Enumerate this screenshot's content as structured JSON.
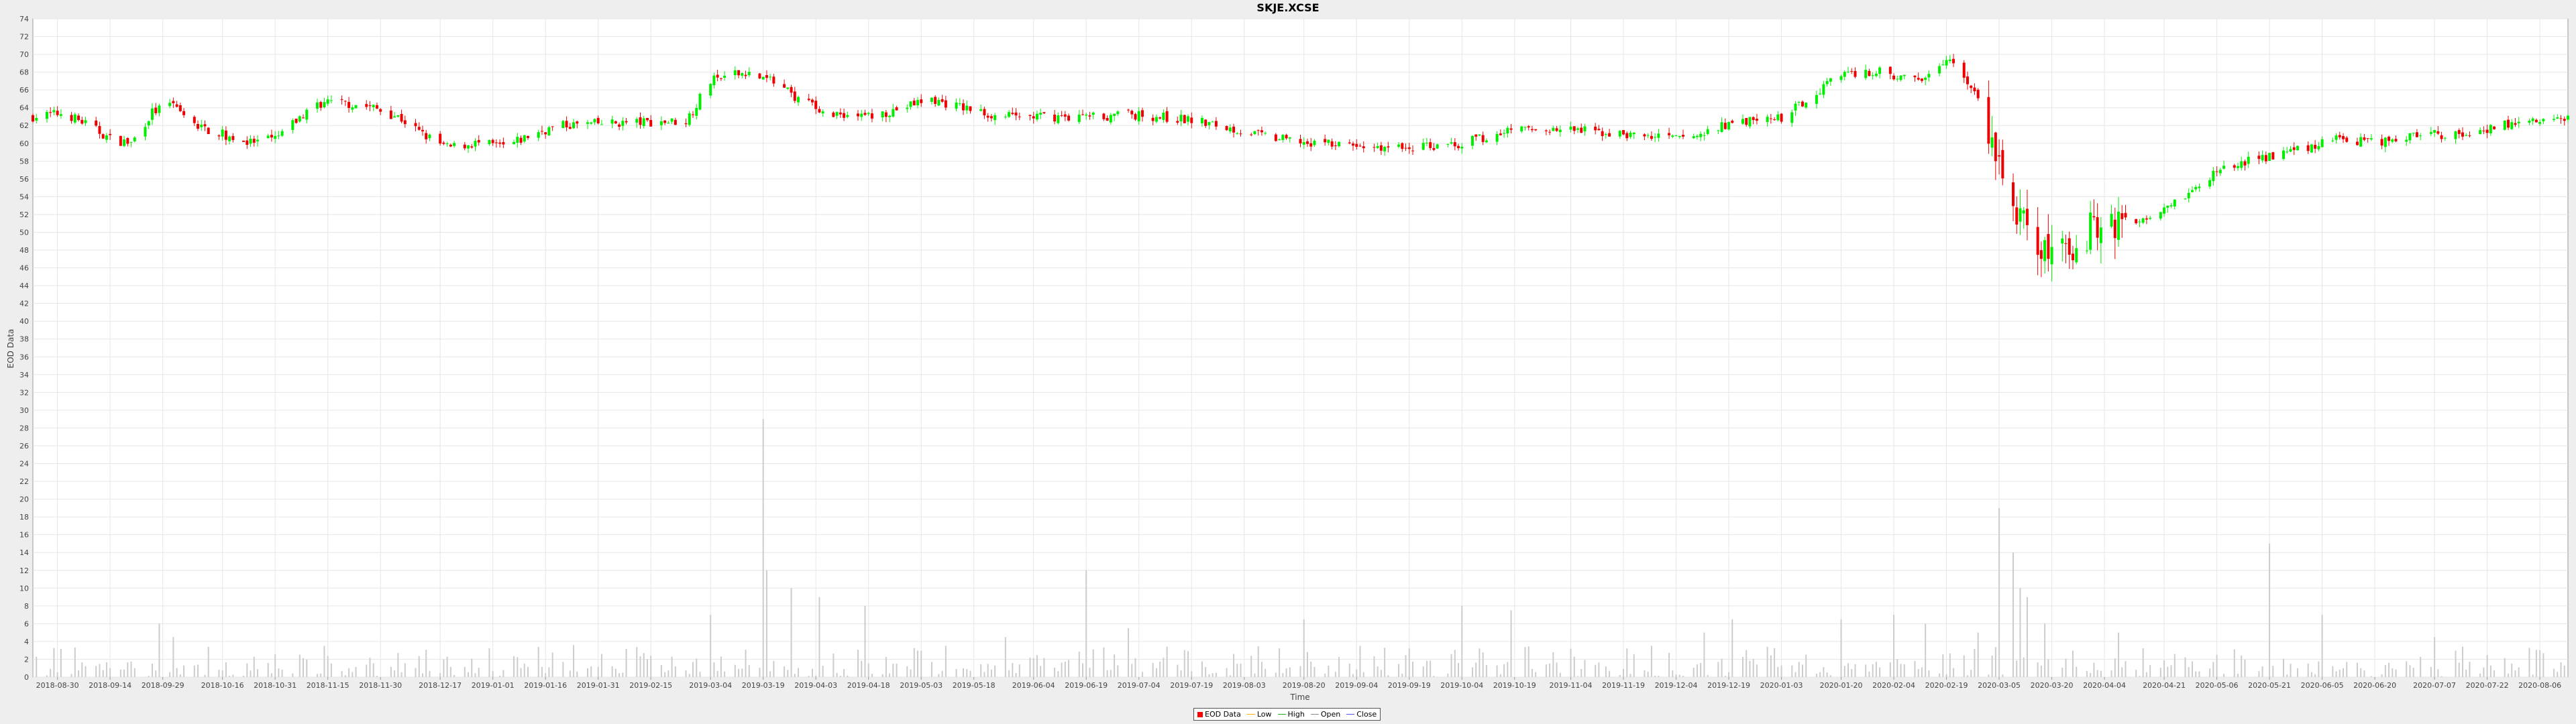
{
  "title": "SKJE.XCSE",
  "chart_data": {
    "type": "candlestick",
    "title": "SKJE.XCSE",
    "xlabel": "Time",
    "ylabel": "EOD Data",
    "ylim": [
      0,
      74
    ],
    "y_ticks": [
      0,
      2,
      4,
      6,
      8,
      10,
      12,
      14,
      16,
      18,
      20,
      22,
      24,
      26,
      28,
      30,
      32,
      34,
      36,
      38,
      40,
      42,
      44,
      46,
      48,
      50,
      52,
      54,
      56,
      58,
      60,
      62,
      64,
      66,
      68,
      70,
      72,
      74
    ],
    "x_range": [
      "2018-08-23",
      "2020-08-14"
    ],
    "x_ticks": [
      "2018-08-30",
      "2018-09-14",
      "2018-09-29",
      "2018-10-16",
      "2018-10-31",
      "2018-11-15",
      "2018-11-30",
      "2018-12-17",
      "2019-01-01",
      "2019-01-16",
      "2019-01-31",
      "2019-02-15",
      "2019-03-04",
      "2019-03-19",
      "2019-04-03",
      "2019-04-18",
      "2019-05-03",
      "2019-05-18",
      "2019-06-04",
      "2019-06-19",
      "2019-07-04",
      "2019-07-19",
      "2019-08-03",
      "2019-08-20",
      "2019-09-04",
      "2019-09-19",
      "2019-10-04",
      "2019-10-19",
      "2019-11-04",
      "2019-11-19",
      "2019-12-04",
      "2019-12-19",
      "2020-01-03",
      "2020-01-20",
      "2020-02-04",
      "2020-02-19",
      "2020-03-05",
      "2020-03-20",
      "2020-04-04",
      "2020-04-21",
      "2020-05-06",
      "2020-05-21",
      "2020-06-05",
      "2020-06-20",
      "2020-07-07",
      "2020-07-22",
      "2020-08-06"
    ],
    "grid": true,
    "legend": {
      "placement": "bottom-center",
      "entries": [
        {
          "name": "EOD Data",
          "color": "#ff0000"
        },
        {
          "name": "Low",
          "color": "#ffaa00"
        },
        {
          "name": "High",
          "color": "#22aa22"
        },
        {
          "name": "Open",
          "color": "#888888"
        },
        {
          "name": "Close",
          "color": "#5555ff"
        }
      ]
    },
    "colors": {
      "up": "#00ee00",
      "down": "#ee0000",
      "volume": "#cccccc"
    },
    "volume_scale": 1.0,
    "close_path": [
      [
        "2018-08-23",
        63.0
      ],
      [
        "2018-09-01",
        63.4
      ],
      [
        "2018-09-08",
        62.0
      ],
      [
        "2018-09-14",
        60.5
      ],
      [
        "2018-09-20",
        60.0
      ],
      [
        "2018-09-26",
        63.5
      ],
      [
        "2018-10-01",
        64.3
      ],
      [
        "2018-10-08",
        62.0
      ],
      [
        "2018-10-16",
        61.0
      ],
      [
        "2018-10-24",
        60.0
      ],
      [
        "2018-10-31",
        60.5
      ],
      [
        "2018-11-06",
        62.5
      ],
      [
        "2018-11-12",
        64.5
      ],
      [
        "2018-11-20",
        64.5
      ],
      [
        "2018-11-28",
        64.0
      ],
      [
        "2018-12-05",
        63.0
      ],
      [
        "2018-12-12",
        61.0
      ],
      [
        "2018-12-19",
        59.5
      ],
      [
        "2018-12-27",
        60.0
      ],
      [
        "2019-01-05",
        59.6
      ],
      [
        "2019-01-12",
        61.0
      ],
      [
        "2019-01-20",
        62.0
      ],
      [
        "2019-01-31",
        62.2
      ],
      [
        "2019-02-15",
        62.4
      ],
      [
        "2019-02-25",
        62.5
      ],
      [
        "2019-03-04",
        67.0
      ],
      [
        "2019-03-14",
        68.0
      ],
      [
        "2019-03-21",
        67.0
      ],
      [
        "2019-03-27",
        65.5
      ],
      [
        "2019-04-05",
        63.5
      ],
      [
        "2019-04-18",
        63.0
      ],
      [
        "2019-04-28",
        64.0
      ],
      [
        "2019-05-05",
        65.0
      ],
      [
        "2019-05-15",
        64.0
      ],
      [
        "2019-05-25",
        63.0
      ],
      [
        "2019-06-08",
        63.0
      ],
      [
        "2019-06-20",
        63.0
      ],
      [
        "2019-07-04",
        63.2
      ],
      [
        "2019-07-19",
        62.6
      ],
      [
        "2019-08-01",
        61.5
      ],
      [
        "2019-08-12",
        60.5
      ],
      [
        "2019-08-25",
        60.0
      ],
      [
        "2019-09-04",
        59.6
      ],
      [
        "2019-09-19",
        59.5
      ],
      [
        "2019-10-04",
        60.0
      ],
      [
        "2019-10-19",
        61.5
      ],
      [
        "2019-11-04",
        61.5
      ],
      [
        "2019-11-19",
        61.0
      ],
      [
        "2019-12-04",
        60.5
      ],
      [
        "2019-12-12",
        61.0
      ],
      [
        "2019-12-19",
        62.2
      ],
      [
        "2020-01-03",
        62.8
      ],
      [
        "2020-01-12",
        65.5
      ],
      [
        "2020-01-20",
        68.0
      ],
      [
        "2020-02-01",
        68.0
      ],
      [
        "2020-02-10",
        67.0
      ],
      [
        "2020-02-19",
        69.5
      ],
      [
        "2020-02-25",
        67.0
      ],
      [
        "2020-03-01",
        63.0
      ],
      [
        "2020-03-05",
        58.0
      ],
      [
        "2020-03-10",
        52.0
      ],
      [
        "2020-03-14",
        49.0
      ],
      [
        "2020-03-20",
        47.0
      ],
      [
        "2020-03-27",
        49.0
      ],
      [
        "2020-04-04",
        51.5
      ],
      [
        "2020-04-12",
        51.0
      ],
      [
        "2020-04-21",
        53.0
      ],
      [
        "2020-05-01",
        55.0
      ],
      [
        "2020-05-06",
        57.0
      ],
      [
        "2020-05-15",
        58.0
      ],
      [
        "2020-05-21",
        58.5
      ],
      [
        "2020-06-01",
        59.5
      ],
      [
        "2020-06-10",
        60.5
      ],
      [
        "2020-06-20",
        60.0
      ],
      [
        "2020-07-01",
        61.0
      ],
      [
        "2020-07-15",
        61.0
      ],
      [
        "2020-07-25",
        62.0
      ],
      [
        "2020-08-06",
        62.5
      ],
      [
        "2020-08-14",
        62.8
      ]
    ],
    "volume_bursts": [
      [
        "2018-09-28",
        6.0
      ],
      [
        "2018-10-02",
        4.5
      ],
      [
        "2018-11-14",
        3.5
      ],
      [
        "2019-03-02",
        6.5
      ],
      [
        "2019-03-04",
        7.0
      ],
      [
        "2019-03-09",
        5.0
      ],
      [
        "2019-03-19",
        29.0
      ],
      [
        "2019-03-20",
        12.0
      ],
      [
        "2019-03-27",
        10.0
      ],
      [
        "2019-04-04",
        9.0
      ],
      [
        "2019-04-17",
        8.0
      ],
      [
        "2019-05-27",
        4.5
      ],
      [
        "2019-06-19",
        12.0
      ],
      [
        "2019-07-01",
        5.5
      ],
      [
        "2019-08-20",
        6.5
      ],
      [
        "2019-10-04",
        8.0
      ],
      [
        "2019-10-13",
        6.5
      ],
      [
        "2019-10-18",
        7.5
      ],
      [
        "2019-12-12",
        5.0
      ],
      [
        "2019-12-20",
        6.5
      ],
      [
        "2020-01-20",
        6.5
      ],
      [
        "2020-02-04",
        7.0
      ],
      [
        "2020-02-13",
        6.0
      ],
      [
        "2020-02-28",
        5.0
      ],
      [
        "2020-03-05",
        19.0
      ],
      [
        "2020-03-07",
        15.0
      ],
      [
        "2020-03-09",
        14.0
      ],
      [
        "2020-03-11",
        10.0
      ],
      [
        "2020-03-13",
        9.0
      ],
      [
        "2020-03-18",
        6.0
      ],
      [
        "2020-04-08",
        5.0
      ],
      [
        "2020-05-21",
        15.0
      ],
      [
        "2020-06-05",
        7.0
      ],
      [
        "2020-07-07",
        4.5
      ]
    ],
    "candle_seed": 7
  }
}
